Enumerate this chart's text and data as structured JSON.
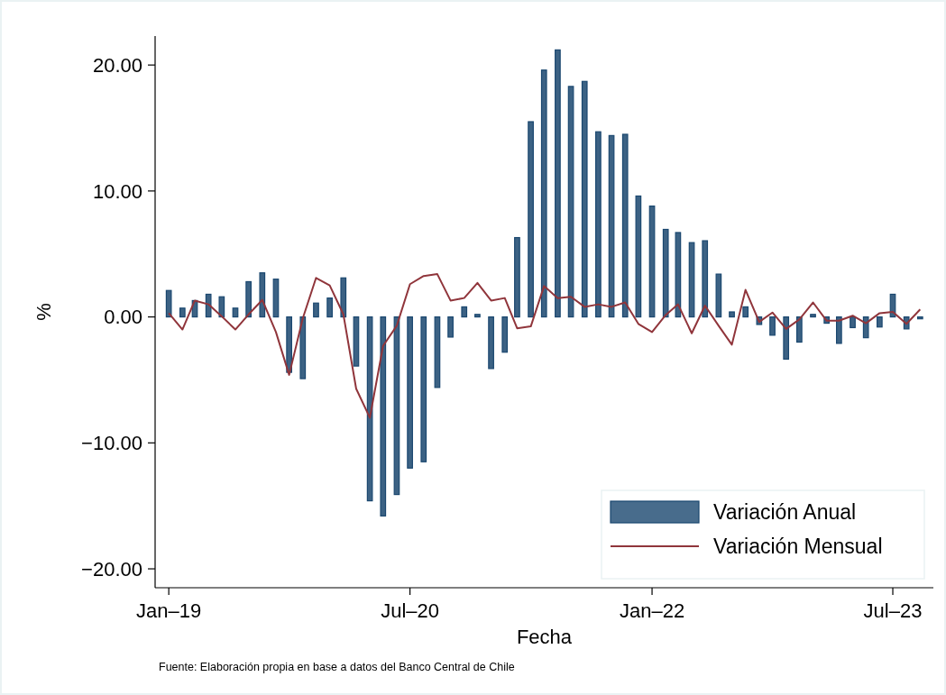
{
  "chart_data": {
    "type": "bar",
    "xlabel": "Fecha",
    "ylabel": "%",
    "x": [
      "2019-01",
      "2019-02",
      "2019-03",
      "2019-04",
      "2019-05",
      "2019-06",
      "2019-07",
      "2019-08",
      "2019-09",
      "2019-10",
      "2019-11",
      "2019-12",
      "2020-01",
      "2020-02",
      "2020-03",
      "2020-04",
      "2020-05",
      "2020-06",
      "2020-07",
      "2020-08",
      "2020-09",
      "2020-10",
      "2020-11",
      "2020-12",
      "2021-01",
      "2021-02",
      "2021-03",
      "2021-04",
      "2021-05",
      "2021-06",
      "2021-07",
      "2021-08",
      "2021-09",
      "2021-10",
      "2021-11",
      "2021-12",
      "2022-01",
      "2022-02",
      "2022-03",
      "2022-04",
      "2022-05",
      "2022-06",
      "2022-07",
      "2022-08",
      "2022-09",
      "2022-10",
      "2022-11",
      "2022-12",
      "2023-01",
      "2023-02",
      "2023-03",
      "2023-04",
      "2023-05",
      "2023-06",
      "2023-07",
      "2023-08",
      "2023-09"
    ],
    "series": [
      {
        "name": "Variación Anual",
        "color": "#1a476f",
        "values": [
          2.1,
          0.7,
          1.3,
          1.8,
          1.6,
          0.7,
          2.8,
          3.5,
          3.0,
          -4.4,
          -4.9,
          1.1,
          1.5,
          3.1,
          -3.9,
          -14.6,
          -15.8,
          -14.1,
          -12.0,
          -11.5,
          -5.6,
          -1.6,
          0.8,
          0.2,
          -4.1,
          -2.8,
          6.3,
          15.5,
          19.6,
          21.2,
          18.3,
          18.7,
          14.7,
          14.4,
          14.5,
          9.6,
          8.8,
          6.95,
          6.7,
          5.9,
          6.05,
          3.4,
          0.4,
          0.8,
          -0.6,
          -1.45,
          -3.35,
          -2.0,
          0.2,
          -0.5,
          -2.1,
          -0.85,
          -1.65,
          -0.8,
          1.8,
          -0.95,
          -0.15
        ]
      },
      {
        "name": "Variación Mensual",
        "type": "line",
        "color": "#90353b",
        "values": [
          0.3,
          -1.0,
          1.3,
          1.0,
          0.05,
          -1.0,
          0.2,
          1.35,
          -1.2,
          -4.6,
          -0.1,
          3.1,
          2.5,
          0.2,
          -5.7,
          -8.0,
          -2.3,
          -0.7,
          2.6,
          3.25,
          3.4,
          1.3,
          1.5,
          2.7,
          1.3,
          1.5,
          -0.9,
          -0.75,
          2.45,
          1.5,
          1.6,
          0.8,
          1.0,
          0.8,
          1.15,
          -0.55,
          -1.2,
          0.15,
          1.0,
          -1.3,
          0.9,
          -0.7,
          -2.2,
          2.15,
          -0.4,
          0.35,
          -0.95,
          -0.2,
          1.15,
          -0.3,
          -0.3,
          0.1,
          -0.5,
          0.3,
          0.4,
          -0.55,
          0.6
        ]
      }
    ],
    "xlim": [
      "2018-12",
      "2023-10"
    ],
    "xticks": [
      {
        "value": "2019-01",
        "label": "Jan–19"
      },
      {
        "value": "2020-07",
        "label": "Jul–20"
      },
      {
        "value": "2022-01",
        "label": "Jan–22"
      },
      {
        "value": "2023-07",
        "label": "Jul–23"
      }
    ],
    "ylim": [
      -21.5,
      22.3
    ],
    "yticks": [
      {
        "value": -20,
        "label": "−20.00"
      },
      {
        "value": -10,
        "label": "−10.00"
      },
      {
        "value": 0,
        "label": "0.00"
      },
      {
        "value": 10,
        "label": "10.00"
      },
      {
        "value": 20,
        "label": "20.00"
      }
    ],
    "legend": "bottom right",
    "grid": false,
    "annotations": [
      "Fuente: Elaboración propia en base a datos del Banco Central de Chile"
    ]
  }
}
